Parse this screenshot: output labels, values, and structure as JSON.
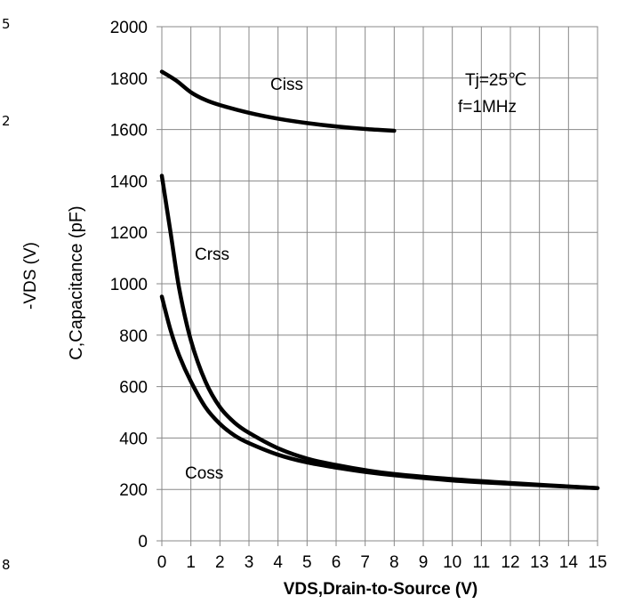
{
  "chart_data": {
    "type": "line",
    "xlabel": "VDS,Drain-to-Source (V)",
    "ylabel": "C,Capacitance (pF)",
    "xlim": [
      0,
      15
    ],
    "ylim": [
      0,
      2000
    ],
    "x_ticks": [
      "0",
      "1",
      "2",
      "3",
      "4",
      "5",
      "6",
      "7",
      "8",
      "9",
      "10",
      "11",
      "12",
      "13",
      "14",
      "15"
    ],
    "y_ticks": [
      "0",
      "200",
      "400",
      "600",
      "800",
      "1000",
      "1200",
      "1400",
      "1600",
      "1800",
      "2000"
    ],
    "grid": true,
    "annotations": [
      "Tj=25℃",
      "f=1MHz"
    ],
    "series": [
      {
        "name": "Ciss",
        "x": [
          0,
          0.5,
          1,
          1.5,
          2,
          3,
          4,
          5,
          6,
          7,
          8
        ],
        "y": [
          1825,
          1790,
          1745,
          1715,
          1695,
          1665,
          1642,
          1625,
          1612,
          1602,
          1595
        ]
      },
      {
        "name": "Crss",
        "x": [
          0,
          0.3,
          0.6,
          1,
          1.5,
          2,
          2.5,
          3,
          4,
          5,
          6,
          7,
          8,
          10,
          12,
          15
        ],
        "y": [
          1420,
          1200,
          980,
          780,
          620,
          520,
          460,
          420,
          360,
          320,
          295,
          275,
          260,
          240,
          225,
          205
        ]
      },
      {
        "name": "Coss",
        "x": [
          0,
          0.3,
          0.6,
          1,
          1.5,
          2,
          2.5,
          3,
          4,
          5,
          6,
          7,
          8,
          10,
          12,
          15
        ],
        "y": [
          950,
          820,
          720,
          620,
          520,
          455,
          410,
          380,
          335,
          305,
          285,
          268,
          255,
          235,
          222,
          205
        ]
      }
    ]
  },
  "left_fragments": {
    "top": "5",
    "upper": "2",
    "axis_label": "-VDS (V)",
    "bottom": "8"
  }
}
